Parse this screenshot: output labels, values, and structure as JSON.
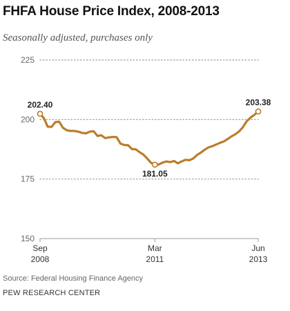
{
  "header": {
    "title": "FHFA House Price Index, 2008-2013",
    "subtitle": "Seasonally adjusted, purchases only"
  },
  "footer": {
    "source": "Source: Federal Housing Finance Agency",
    "brand": "PEW RESEARCH CENTER"
  },
  "colors": {
    "line": "#b97d2c",
    "grid": "#999999",
    "axis": "#999999"
  },
  "chart_data": {
    "type": "line",
    "title": "FHFA House Price Index, 2008-2013",
    "subtitle": "Seasonally adjusted, purchases only",
    "xlabel": "",
    "ylabel": "",
    "ylim": [
      150,
      225
    ],
    "yticks": [
      150,
      175,
      200,
      225
    ],
    "grid": true,
    "x_range": [
      "2008-09",
      "2013-06"
    ],
    "x_tick_labels": [
      {
        "x": "2008-09",
        "line1": "Sep",
        "line2": "2008"
      },
      {
        "x": "2011-03",
        "line1": "Mar",
        "line2": "2011"
      },
      {
        "x": "2013-06",
        "line1": "Jun",
        "line2": "2013"
      }
    ],
    "series": [
      {
        "x": [
          "2008-09",
          "2008-10",
          "2008-11",
          "2008-12",
          "2009-01",
          "2009-02",
          "2009-03",
          "2009-04",
          "2009-05",
          "2009-06",
          "2009-07",
          "2009-08",
          "2009-09",
          "2009-10",
          "2009-11",
          "2009-12",
          "2010-01",
          "2010-02",
          "2010-03",
          "2010-04",
          "2010-05",
          "2010-06",
          "2010-07",
          "2010-08",
          "2010-09",
          "2010-10",
          "2010-11",
          "2010-12",
          "2011-01",
          "2011-02",
          "2011-03",
          "2011-04",
          "2011-05",
          "2011-06",
          "2011-07",
          "2011-08",
          "2011-09",
          "2011-10",
          "2011-11",
          "2011-12",
          "2012-01",
          "2012-02",
          "2012-03",
          "2012-04",
          "2012-05",
          "2012-06",
          "2012-07",
          "2012-08",
          "2012-09",
          "2012-10",
          "2012-11",
          "2012-12",
          "2013-01",
          "2013-02",
          "2013-03",
          "2013-04",
          "2013-05",
          "2013-06"
        ],
        "values": [
          202.4,
          200.6,
          197.0,
          196.9,
          198.9,
          199.1,
          196.5,
          195.5,
          195.2,
          195.2,
          194.9,
          194.4,
          194.2,
          194.9,
          195.1,
          193.1,
          193.4,
          192.2,
          192.5,
          192.7,
          192.6,
          189.9,
          189.3,
          189.2,
          187.6,
          187.5,
          186.3,
          185.3,
          183.6,
          181.8,
          181.05,
          181.1,
          181.9,
          182.4,
          182.1,
          182.6,
          181.6,
          182.4,
          183.1,
          182.9,
          183.6,
          185.1,
          186.1,
          187.3,
          188.3,
          188.8,
          189.5,
          190.2,
          190.8,
          191.8,
          192.9,
          193.8,
          195.0,
          196.8,
          199.3,
          200.8,
          202.0,
          203.38
        ]
      }
    ],
    "annotations": [
      {
        "x": "2008-09",
        "value": 202.4,
        "label": "202.40",
        "position": "above"
      },
      {
        "x": "2011-03",
        "value": 181.05,
        "label": "181.05",
        "position": "below"
      },
      {
        "x": "2013-06",
        "value": 203.38,
        "label": "203.38",
        "position": "above"
      }
    ]
  }
}
